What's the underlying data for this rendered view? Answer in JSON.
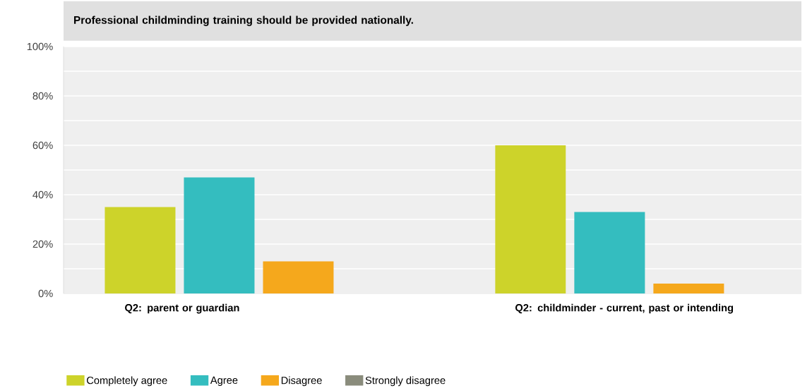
{
  "chart_data": {
    "type": "bar",
    "title": "Professional childminding training should be provided nationally.",
    "categories": [
      "Q2: parent or guardian",
      "Q2: childminder - current, past or intending"
    ],
    "series": [
      {
        "name": "Completely agree",
        "color": "#cdd32a",
        "values": [
          35,
          60
        ]
      },
      {
        "name": "Agree",
        "color": "#34bdbf",
        "values": [
          47,
          33
        ]
      },
      {
        "name": "Disagree",
        "color": "#f5a81c",
        "values": [
          13,
          4
        ]
      },
      {
        "name": "Strongly disagree",
        "color": "#8a8c7c",
        "values": [
          0,
          0
        ]
      }
    ],
    "ylim": [
      0,
      100
    ],
    "yticks": [
      {
        "value": 0,
        "label": "0%"
      },
      {
        "value": 10,
        "label": null
      },
      {
        "value": 20,
        "label": "20%"
      },
      {
        "value": 30,
        "label": null
      },
      {
        "value": 40,
        "label": "40%"
      },
      {
        "value": 50,
        "label": null
      },
      {
        "value": 60,
        "label": "60%"
      },
      {
        "value": 70,
        "label": null
      },
      {
        "value": 80,
        "label": "80%"
      },
      {
        "value": 90,
        "label": null
      },
      {
        "value": 100,
        "label": "100%"
      }
    ],
    "grid": "y",
    "legend": "bottom left"
  }
}
